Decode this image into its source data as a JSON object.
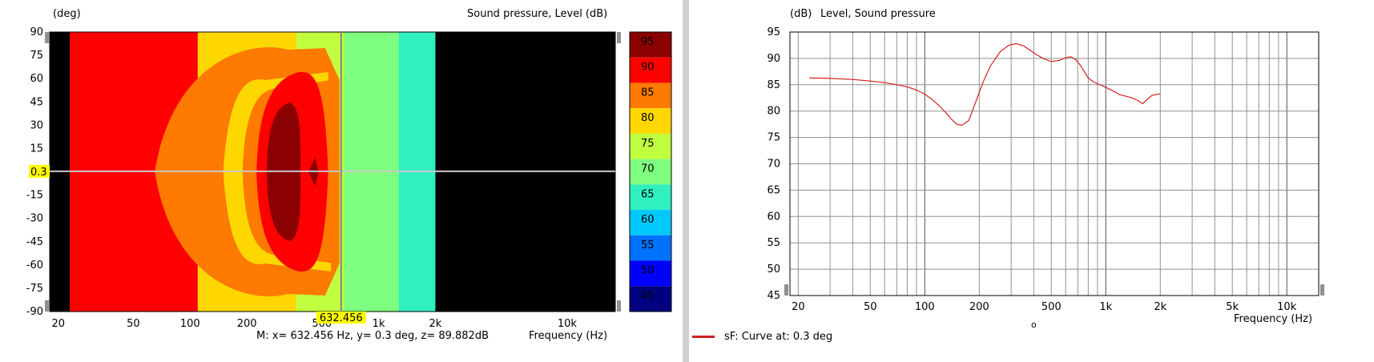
{
  "left": {
    "y_unit": "(deg)",
    "title": "Sound pressure, Level  (dB)",
    "cursor_y_label": "0.3",
    "cursor_x_label": "632.456",
    "measure_text": "M:  x= 632.456 Hz,  y= 0.3 deg, z= 89.882dB",
    "freq_label": "Frequency  (Hz)"
  },
  "right": {
    "y_unit": "(dB)",
    "title": "Level, Sound pressure",
    "freq_label": "Frequency  (Hz)",
    "legend_label": "sF: Curve at: 0.3 deg",
    "small_mark": "o"
  },
  "colors": {
    "band_95": "#8b0000",
    "band_90": "#ff0000",
    "band_85": "#ff7a00",
    "band_80": "#ffd700",
    "band_75": "#c0ff40",
    "band_70": "#7fff7f",
    "band_65": "#30f0c0",
    "band_60": "#00c8ff",
    "band_55": "#0070ff",
    "band_50": "#0000ff",
    "band_45": "#000080",
    "curve": "#d42020",
    "cursor_highlight": "#ffff00"
  },
  "chart_data": [
    {
      "type": "heatmap",
      "x_scale": "log",
      "xlim": [
        18,
        18000
      ],
      "ylim": [
        -90,
        90
      ],
      "x_ticks": [
        20,
        50,
        100,
        200,
        500,
        1000,
        2000,
        10000
      ],
      "x_tick_labels": [
        "20",
        "50",
        "100",
        "200",
        "500",
        "1k",
        "2k",
        "10k"
      ],
      "y_ticks": [
        90,
        75,
        60,
        45,
        30,
        15,
        0,
        -15,
        -30,
        -45,
        -60,
        -75,
        -90
      ],
      "y_tick_labels": [
        "90",
        "75",
        "60",
        "45",
        "30",
        "15",
        "0",
        "-15",
        "-30",
        "-45",
        "-60",
        "-75",
        "-90"
      ],
      "colorbar_levels": [
        95,
        90,
        85,
        80,
        75,
        70,
        65,
        60,
        55,
        50,
        45
      ],
      "colorbar_labels": [
        "95",
        "90",
        "85",
        "80",
        "75",
        "70",
        "65",
        "60",
        "55",
        "50",
        "45"
      ],
      "data_range_hz": [
        23,
        2000
      ],
      "cursor": {
        "x": 632.456,
        "y": 0.3,
        "z": 89.882
      }
    },
    {
      "type": "line",
      "x_scale": "log",
      "xlim": [
        18,
        15000
      ],
      "ylim": [
        45,
        95
      ],
      "x_ticks": [
        20,
        50,
        100,
        200,
        500,
        1000,
        2000,
        5000,
        10000
      ],
      "x_tick_labels": [
        "20",
        "50",
        "100",
        "200",
        "500",
        "1k",
        "2k",
        "5k",
        "10k"
      ],
      "y_ticks": [
        95,
        90,
        85,
        80,
        75,
        70,
        65,
        60,
        55,
        50,
        45
      ],
      "y_tick_labels": [
        "95",
        "90",
        "85",
        "80",
        "75",
        "70",
        "65",
        "60",
        "55",
        "50",
        "45"
      ],
      "grid": true,
      "series": [
        {
          "name": "sF: Curve at: 0.3 deg",
          "x": [
            23,
            30,
            40,
            50,
            60,
            70,
            80,
            90,
            100,
            110,
            120,
            130,
            140,
            150,
            160,
            175,
            190,
            210,
            230,
            260,
            290,
            320,
            350,
            380,
            410,
            450,
            500,
            550,
            600,
            640,
            680,
            720,
            760,
            800,
            850,
            900,
            1000,
            1100,
            1200,
            1300,
            1400,
            1500,
            1600,
            1700,
            1800,
            2000
          ],
          "y": [
            86.3,
            86.2,
            86.0,
            85.7,
            85.4,
            85.0,
            84.6,
            84.0,
            83.2,
            82.2,
            81.0,
            79.8,
            78.5,
            77.5,
            77.3,
            78.2,
            81.5,
            85.5,
            88.5,
            91.2,
            92.5,
            92.8,
            92.4,
            91.6,
            90.8,
            90.0,
            89.4,
            89.6,
            90.1,
            90.3,
            89.8,
            88.8,
            87.5,
            86.3,
            85.6,
            85.2,
            84.5,
            83.8,
            83.1,
            82.8,
            82.5,
            82.0,
            81.4,
            82.3,
            83.0,
            83.3
          ]
        }
      ]
    }
  ]
}
